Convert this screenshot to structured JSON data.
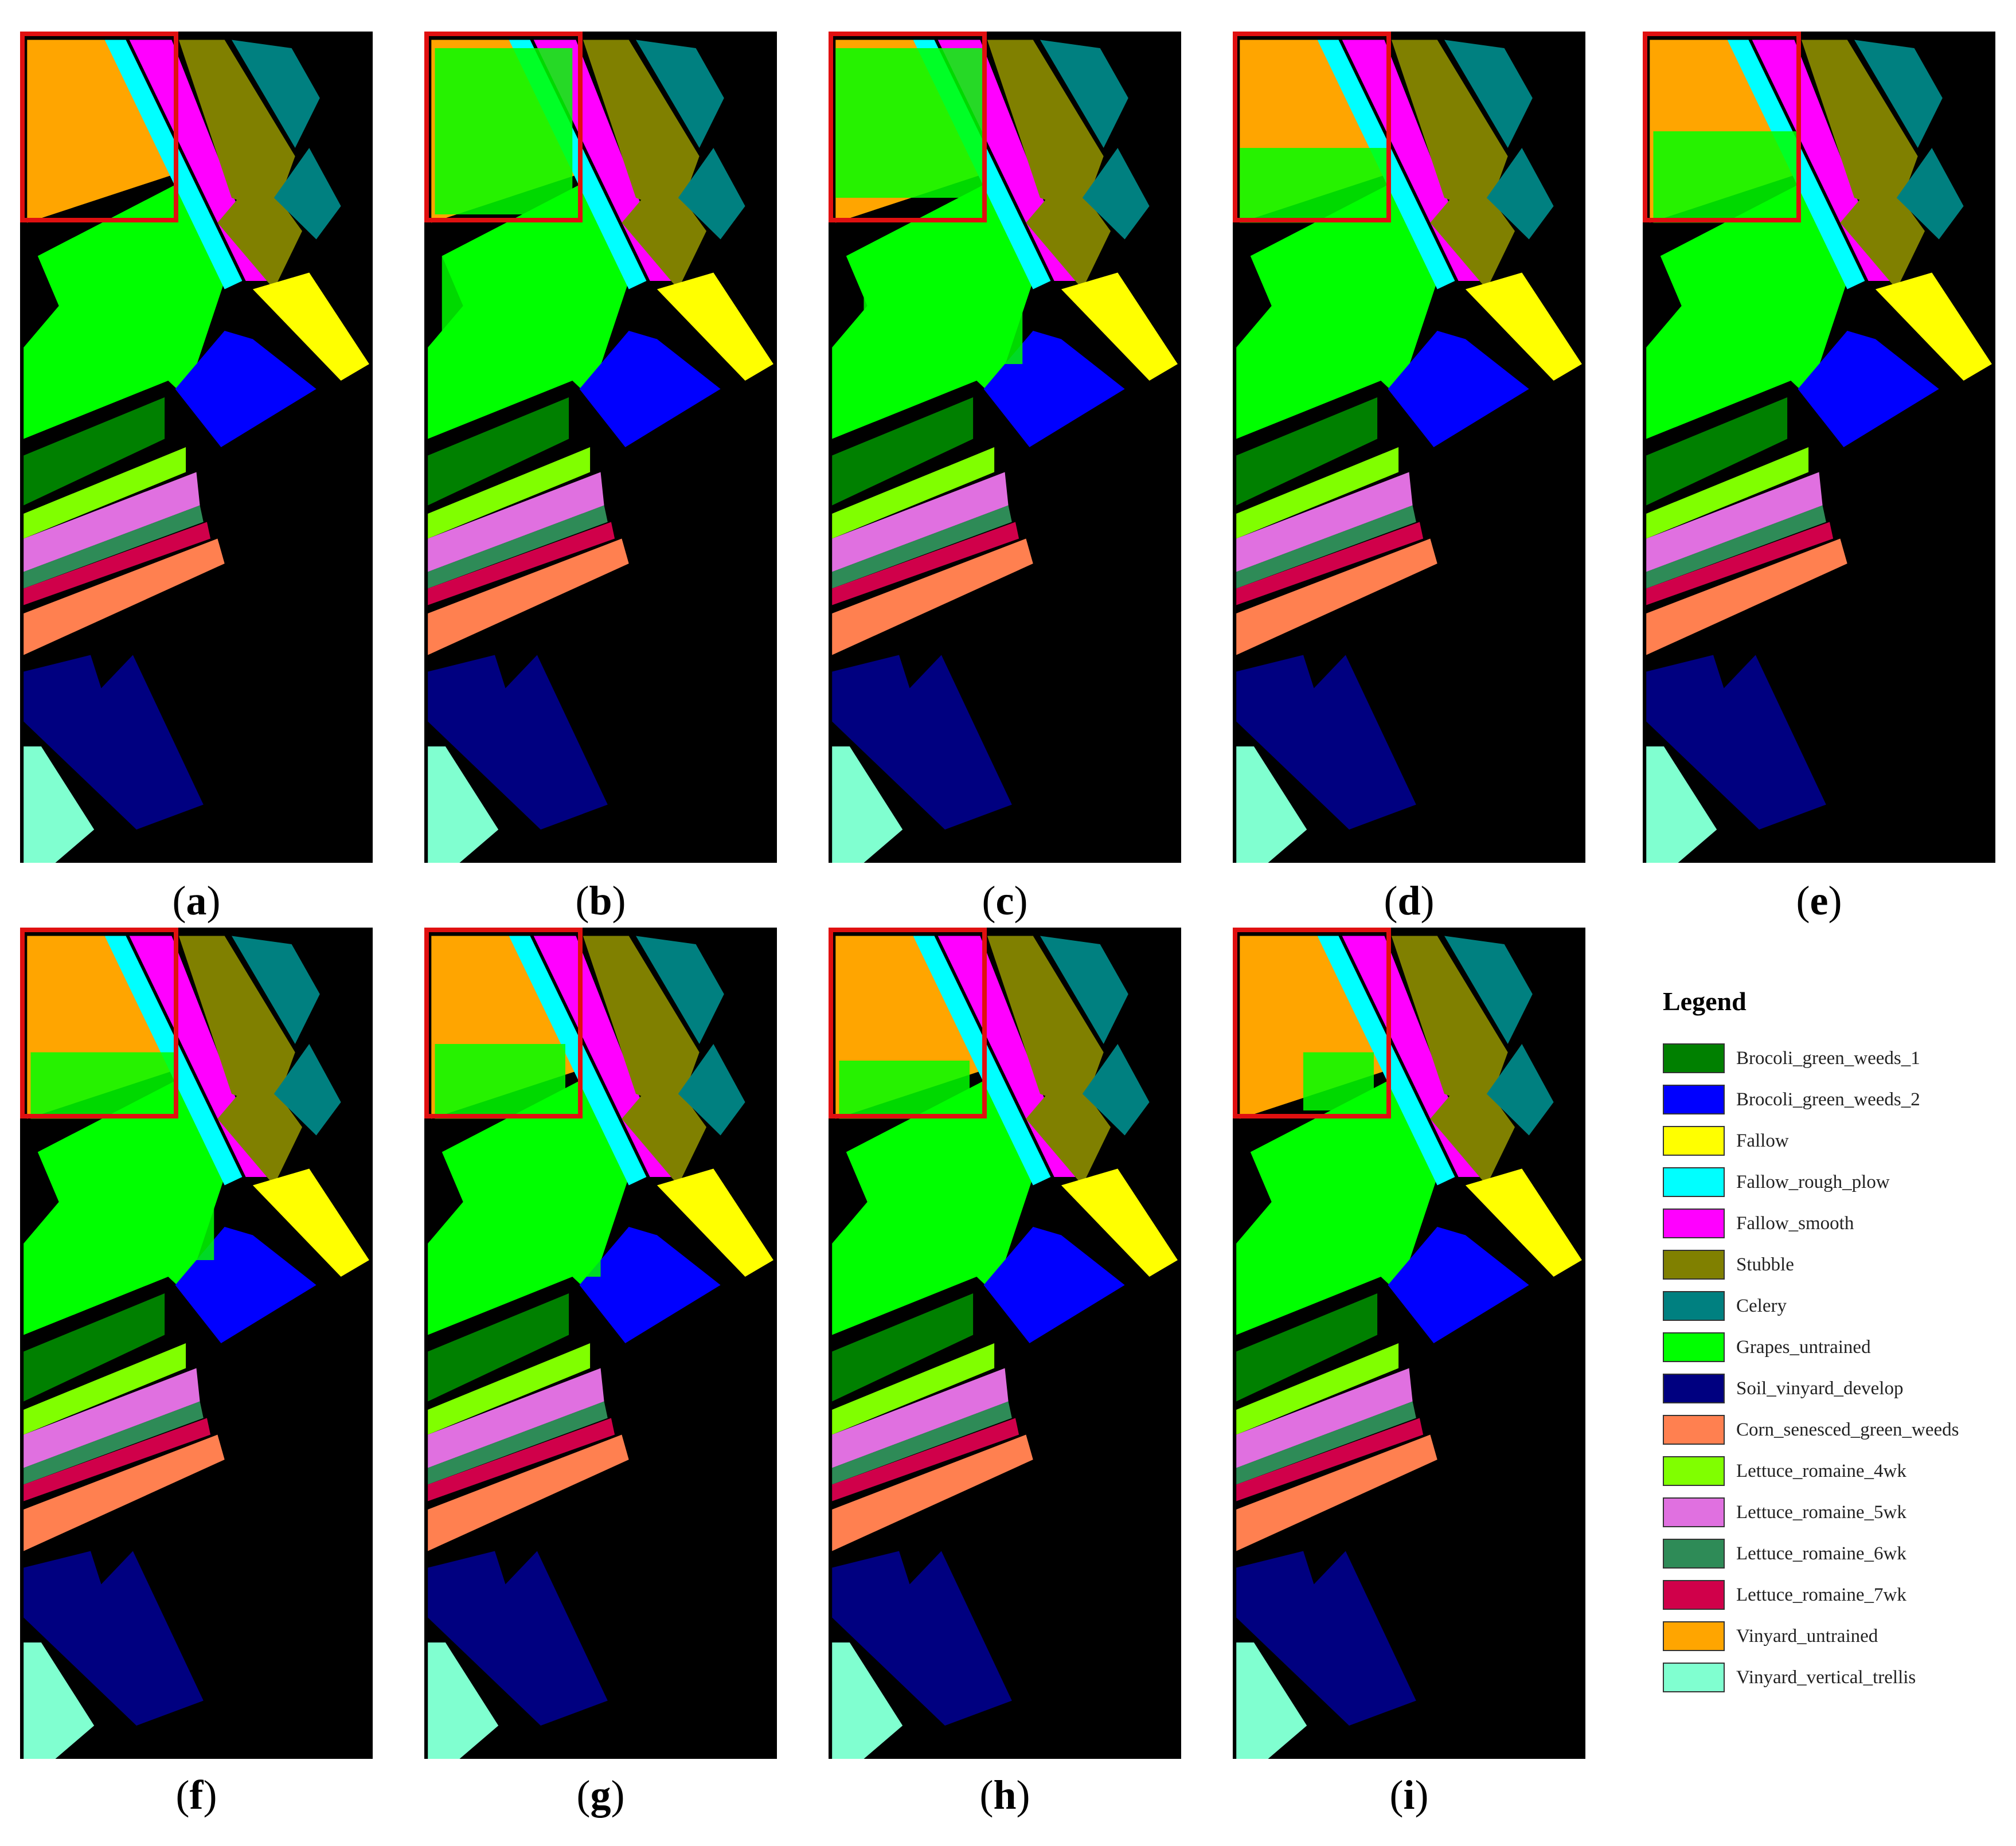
{
  "panels": [
    {
      "label": "a"
    },
    {
      "label": "b"
    },
    {
      "label": "c"
    },
    {
      "label": "d"
    },
    {
      "label": "e"
    },
    {
      "label": "f"
    },
    {
      "label": "g"
    },
    {
      "label": "h"
    },
    {
      "label": "i"
    }
  ],
  "legend": {
    "title": "Legend",
    "items": [
      {
        "label": "Brocoli_green_weeds_1",
        "color": "#008000"
      },
      {
        "label": "Brocoli_green_weeds_2",
        "color": "#0000ff"
      },
      {
        "label": "Fallow",
        "color": "#ffff00"
      },
      {
        "label": "Fallow_rough_plow",
        "color": "#00ffff"
      },
      {
        "label": "Fallow_smooth",
        "color": "#ff00ff"
      },
      {
        "label": "Stubble",
        "color": "#808000"
      },
      {
        "label": "Celery",
        "color": "#008080"
      },
      {
        "label": "Grapes_untrained",
        "color": "#00ff00"
      },
      {
        "label": "Soil_vinyard_develop",
        "color": "#000080"
      },
      {
        "label": "Corn_senesced_green_weeds",
        "color": "#ff8050"
      },
      {
        "label": "Lettuce_romaine_4wk",
        "color": "#80ff00"
      },
      {
        "label": "Lettuce_romaine_5wk",
        "color": "#e070e0"
      },
      {
        "label": "Lettuce_romaine_6wk",
        "color": "#2e8b57"
      },
      {
        "label": "Lettuce_romaine_7wk",
        "color": "#d0004a"
      },
      {
        "label": "Vinyard_untrained",
        "color": "#ffa500"
      },
      {
        "label": "Vinyard_vertical_trellis",
        "color": "#80ffd0"
      }
    ]
  },
  "highlight_color": "#e01010",
  "background_color": "#000000"
}
